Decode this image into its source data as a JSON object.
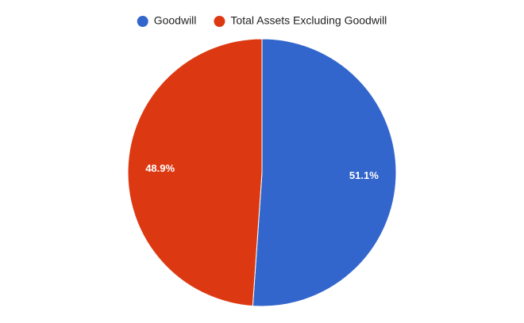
{
  "chart_data": {
    "type": "pie",
    "categories": [
      "Goodwill",
      "Total Assets Excluding Goodwill"
    ],
    "values": [
      51.1,
      48.9
    ],
    "value_labels": [
      "51.1%",
      "48.9%"
    ],
    "colors": [
      "#3366cc",
      "#dc3912"
    ],
    "legend": "top"
  }
}
